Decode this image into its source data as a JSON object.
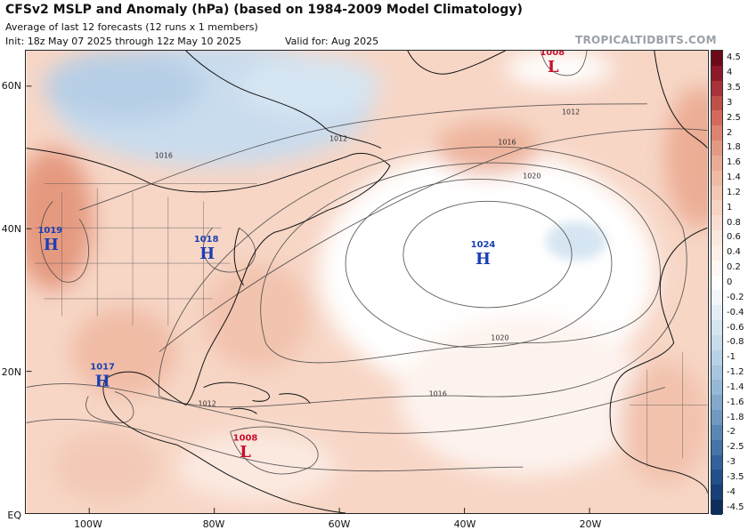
{
  "header": {
    "title": "CFSv2 MSLP and Anomaly (hPa) (based on 1984-2009 Model Climatology)",
    "subtitle": "Average of last 12 forecasts (12 runs x 1 members)",
    "init": "Init: 18z May 07 2025 through 12z May 10 2025",
    "valid": "Valid for: Aug 2025",
    "credit": "TROPICALTIDBITS.COM"
  },
  "axes": {
    "lat_labels": [
      "60N",
      "40N",
      "20N",
      "EQ"
    ],
    "lon_labels": [
      "100W",
      "80W",
      "60W",
      "40W",
      "20W"
    ]
  },
  "pressure_centers": [
    {
      "type": "H",
      "value": "1019",
      "color": "#1a3fb5"
    },
    {
      "type": "H",
      "value": "1018",
      "color": "#1a3fb5"
    },
    {
      "type": "H",
      "value": "1017",
      "color": "#1a3fb5"
    },
    {
      "type": "H",
      "value": "1024",
      "color": "#1a3fb5"
    },
    {
      "type": "L",
      "value": "1008",
      "color": "#c8102e"
    },
    {
      "type": "L",
      "value": "1008",
      "color": "#c8102e"
    }
  ],
  "contour_labels": [
    "1012",
    "1012",
    "1016",
    "1016",
    "1020",
    "1020",
    "1016",
    "1012"
  ],
  "colorbar": {
    "labels": [
      "4.5",
      "4",
      "3.5",
      "3",
      "2.5",
      "2",
      "1.8",
      "1.6",
      "1.4",
      "1.2",
      "1",
      "0.8",
      "0.6",
      "0.4",
      "0.2",
      "0",
      "-0.2",
      "-0.4",
      "-0.6",
      "-0.8",
      "-1",
      "-1.2",
      "-1.4",
      "-1.6",
      "-1.8",
      "-2",
      "-2.5",
      "-3",
      "-3.5",
      "-4",
      "-4.5"
    ],
    "colors": [
      "#6b0b1a",
      "#8c1a2b",
      "#a8323a",
      "#c0504a",
      "#d26b5c",
      "#dc8470",
      "#e39a83",
      "#e9ab94",
      "#efbba5",
      "#f3c8b5",
      "#f6d4c4",
      "#f8ded1",
      "#fae7dd",
      "#fcefe8",
      "#fef7f3",
      "#ffffff",
      "#f1f6fb",
      "#e4eef7",
      "#d6e5f2",
      "#c7dcec",
      "#b8d1e6",
      "#a7c5df",
      "#95b8d6",
      "#82a9cc",
      "#6f99c1",
      "#5987b5",
      "#4474a8",
      "#31629a",
      "#22508a",
      "#173f78",
      "#0f2d5c"
    ]
  }
}
